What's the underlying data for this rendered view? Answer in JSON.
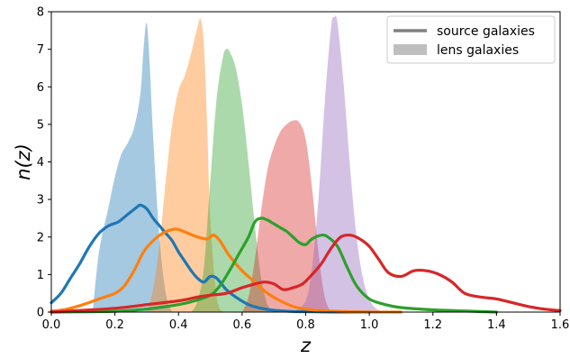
{
  "chart_data": {
    "type": "area",
    "xlabel": "z",
    "ylabel": "n(z)",
    "xlim": [
      0.0,
      1.6
    ],
    "ylim": [
      0,
      8
    ],
    "xticks": [
      "0.0",
      "0.2",
      "0.4",
      "0.6",
      "0.8",
      "1.0",
      "1.2",
      "1.4",
      "1.6"
    ],
    "yticks": [
      "0",
      "1",
      "2",
      "3",
      "4",
      "5",
      "6",
      "7",
      "8"
    ],
    "grid": false,
    "legend": {
      "placement": "top-right",
      "entries": [
        {
          "label": "source galaxies",
          "style": "line",
          "color": "#808080"
        },
        {
          "label": "lens galaxies",
          "style": "patch",
          "color": "#bfbfbf"
        }
      ]
    },
    "lens_series": [
      {
        "color": "#1f77b4",
        "x": [
          0.13,
          0.15,
          0.18,
          0.2,
          0.22,
          0.24,
          0.26,
          0.28,
          0.29,
          0.3,
          0.31,
          0.32,
          0.34,
          0.36,
          0.38
        ],
        "y": [
          0,
          1.6,
          2.8,
          3.6,
          4.2,
          4.5,
          4.9,
          5.8,
          7.0,
          7.7,
          6.5,
          4.7,
          2.0,
          0.5,
          0
        ]
      },
      {
        "color": "#ff7f0e",
        "x": [
          0.3,
          0.32,
          0.34,
          0.36,
          0.38,
          0.4,
          0.42,
          0.44,
          0.46,
          0.47,
          0.48,
          0.49,
          0.5,
          0.52,
          0.54
        ],
        "y": [
          0,
          0.6,
          1.8,
          3.5,
          5.0,
          5.9,
          6.3,
          6.9,
          7.6,
          7.8,
          7.1,
          5.0,
          2.5,
          0.4,
          0
        ]
      },
      {
        "color": "#2ca02c",
        "x": [
          0.44,
          0.46,
          0.48,
          0.5,
          0.52,
          0.54,
          0.55,
          0.56,
          0.58,
          0.6,
          0.62,
          0.64,
          0.66,
          0.68,
          0.7
        ],
        "y": [
          0,
          0.3,
          1.2,
          3.5,
          5.7,
          6.8,
          7.0,
          6.95,
          6.5,
          5.5,
          4.0,
          2.3,
          0.9,
          0.2,
          0
        ]
      },
      {
        "color": "#d62728",
        "x": [
          0.6,
          0.62,
          0.64,
          0.66,
          0.68,
          0.7,
          0.72,
          0.74,
          0.76,
          0.78,
          0.8,
          0.82,
          0.84,
          0.86,
          0.88
        ],
        "y": [
          0,
          0.4,
          1.4,
          2.7,
          3.8,
          4.4,
          4.8,
          5.0,
          5.1,
          5.05,
          4.6,
          3.3,
          1.6,
          0.4,
          0
        ]
      },
      {
        "color": "#9467bd",
        "x": [
          0.76,
          0.8,
          0.82,
          0.84,
          0.86,
          0.88,
          0.89,
          0.9,
          0.92,
          0.94,
          0.96,
          0.98,
          1.0,
          1.02,
          1.05
        ],
        "y": [
          0,
          0.3,
          1.2,
          3.0,
          5.6,
          7.6,
          7.85,
          7.7,
          6.0,
          3.8,
          2.0,
          0.9,
          0.35,
          0.1,
          0
        ]
      }
    ],
    "source_series": [
      {
        "color": "#1f77b4",
        "x": [
          0.0,
          0.03,
          0.06,
          0.09,
          0.12,
          0.15,
          0.18,
          0.21,
          0.24,
          0.27,
          0.28,
          0.3,
          0.32,
          0.34,
          0.36,
          0.38,
          0.4,
          0.42,
          0.44,
          0.46,
          0.48,
          0.5,
          0.52,
          0.55,
          0.58,
          0.62,
          0.66,
          0.7,
          0.75,
          0.8,
          0.9,
          1.0
        ],
        "y": [
          0.25,
          0.5,
          0.9,
          1.3,
          1.75,
          2.1,
          2.3,
          2.4,
          2.6,
          2.8,
          2.85,
          2.75,
          2.5,
          2.3,
          2.1,
          1.9,
          1.6,
          1.35,
          1.1,
          0.9,
          0.8,
          0.95,
          0.9,
          0.6,
          0.4,
          0.2,
          0.1,
          0.05,
          0.02,
          0.01,
          0,
          0
        ]
      },
      {
        "color": "#ff7f0e",
        "x": [
          0.0,
          0.05,
          0.1,
          0.15,
          0.2,
          0.23,
          0.26,
          0.29,
          0.32,
          0.35,
          0.38,
          0.4,
          0.43,
          0.46,
          0.49,
          0.51,
          0.53,
          0.56,
          0.6,
          0.64,
          0.68,
          0.72,
          0.76,
          0.8,
          0.85,
          0.9,
          1.0,
          1.1
        ],
        "y": [
          0.02,
          0.08,
          0.2,
          0.35,
          0.5,
          0.7,
          1.1,
          1.6,
          1.9,
          2.1,
          2.2,
          2.2,
          2.1,
          2.0,
          1.95,
          2.05,
          1.9,
          1.5,
          1.1,
          0.8,
          0.5,
          0.3,
          0.15,
          0.08,
          0.04,
          0.02,
          0,
          0
        ]
      },
      {
        "color": "#2ca02c",
        "x": [
          0.0,
          0.2,
          0.3,
          0.4,
          0.45,
          0.5,
          0.53,
          0.56,
          0.59,
          0.62,
          0.64,
          0.66,
          0.68,
          0.7,
          0.72,
          0.74,
          0.76,
          0.78,
          0.8,
          0.82,
          0.85,
          0.87,
          0.9,
          0.93,
          0.96,
          1.0,
          1.05,
          1.1,
          1.2,
          1.3,
          1.4
        ],
        "y": [
          0,
          0.02,
          0.08,
          0.2,
          0.3,
          0.45,
          0.7,
          1.1,
          1.55,
          2.0,
          2.4,
          2.5,
          2.45,
          2.35,
          2.25,
          2.15,
          2.0,
          1.85,
          1.8,
          1.95,
          2.05,
          2.0,
          1.75,
          1.2,
          0.7,
          0.35,
          0.2,
          0.12,
          0.06,
          0.03,
          0
        ]
      },
      {
        "color": "#d62728",
        "x": [
          0.0,
          0.2,
          0.3,
          0.4,
          0.46,
          0.5,
          0.55,
          0.6,
          0.64,
          0.67,
          0.7,
          0.73,
          0.76,
          0.79,
          0.82,
          0.85,
          0.88,
          0.91,
          0.94,
          0.97,
          1.0,
          1.03,
          1.06,
          1.1,
          1.14,
          1.18,
          1.22,
          1.26,
          1.3,
          1.35,
          1.4,
          1.45,
          1.5,
          1.55,
          1.6
        ],
        "y": [
          0,
          0.1,
          0.2,
          0.3,
          0.4,
          0.45,
          0.5,
          0.65,
          0.75,
          0.8,
          0.75,
          0.6,
          0.65,
          0.75,
          1.0,
          1.3,
          1.7,
          2.0,
          2.05,
          1.95,
          1.75,
          1.4,
          1.05,
          0.95,
          1.1,
          1.1,
          1.0,
          0.8,
          0.5,
          0.4,
          0.35,
          0.25,
          0.15,
          0.08,
          0.04
        ]
      }
    ]
  }
}
